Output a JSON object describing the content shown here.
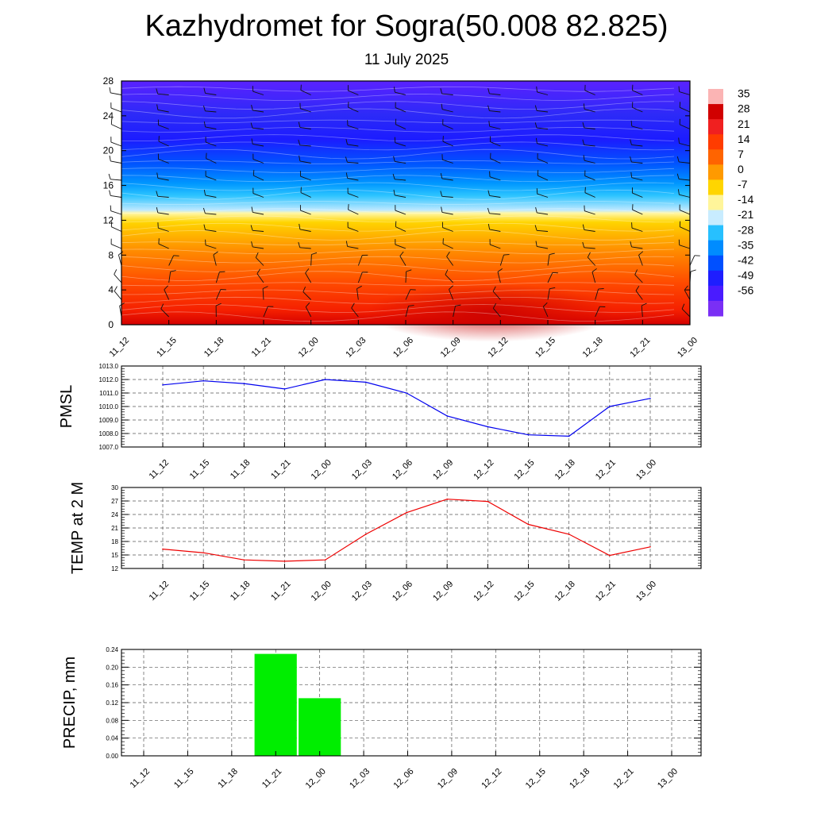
{
  "header": {
    "title": "Kazhydromet for Sogra(50.008 82.825)",
    "date": "11 July 2025"
  },
  "chart_data": [
    {
      "type": "heatmap",
      "name": "temperature-height-section",
      "x_ticks": [
        "11_12",
        "11_15",
        "11_18",
        "11_21",
        "12_00",
        "12_03",
        "12_06",
        "12_09",
        "12_12",
        "12_15",
        "12_18",
        "12_21",
        "13_00"
      ],
      "y_ticks": [
        0,
        4,
        8,
        12,
        16,
        20,
        24,
        28
      ],
      "ylim": [
        0,
        28
      ],
      "colorbar": {
        "labels": [
          "35",
          "28",
          "21",
          "14",
          "7",
          "0",
          "-7",
          "-14",
          "-21",
          "-28",
          "-35",
          "-42",
          "-49",
          "-56"
        ],
        "colors": [
          "#fbb4b4",
          "#d10000",
          "#f02020",
          "#ff3c00",
          "#ff6400",
          "#ff9a00",
          "#ffd500",
          "#fff59a",
          "#c8ecff",
          "#27c0ff",
          "#008cff",
          "#0050ff",
          "#1e1eff",
          "#4a1bff",
          "#7a2ff5"
        ]
      },
      "grid": false
    },
    {
      "type": "line",
      "name": "pmsl",
      "ylabel": "PMSL",
      "categories": [
        "11_12",
        "11_15",
        "11_18",
        "11_21",
        "12_00",
        "12_03",
        "12_06",
        "12_09",
        "12_12",
        "12_15",
        "12_18",
        "12_21",
        "13_00"
      ],
      "values": [
        1011.6,
        1011.9,
        1011.7,
        1011.3,
        1012.0,
        1011.8,
        1011.0,
        1009.3,
        1008.5,
        1007.9,
        1007.8,
        1010.0,
        1010.6
      ],
      "ylim": [
        1007.0,
        1013.0
      ],
      "y_ticks": [
        "1007.0",
        "1008.0",
        "1009.0",
        "1010.0",
        "1011.0",
        "1012.0",
        "1013.0"
      ],
      "color": "#0000ee",
      "grid": true
    },
    {
      "type": "line",
      "name": "temp-2m",
      "ylabel": "TEMP at 2 M",
      "categories": [
        "11_12",
        "11_15",
        "11_18",
        "11_21",
        "12_00",
        "12_03",
        "12_06",
        "12_09",
        "12_12",
        "12_15",
        "12_18",
        "12_21",
        "13_00"
      ],
      "values": [
        16.3,
        15.5,
        13.9,
        13.6,
        13.9,
        19.6,
        24.4,
        27.4,
        26.9,
        21.8,
        19.6,
        14.9,
        16.8
      ],
      "ylim": [
        12,
        30
      ],
      "y_ticks": [
        "12",
        "15",
        "18",
        "21",
        "24",
        "27",
        "30"
      ],
      "color": "#ee0000",
      "grid": true
    },
    {
      "type": "bar",
      "name": "precip",
      "ylabel": "PRECIP, mm",
      "categories": [
        "11_12",
        "11_15",
        "11_18",
        "11_21",
        "12_00",
        "12_03",
        "12_06",
        "12_09",
        "12_12",
        "12_15",
        "12_18",
        "12_21",
        "13_00"
      ],
      "values": [
        0,
        0,
        0,
        0.23,
        0.13,
        0,
        0,
        0,
        0,
        0,
        0,
        0,
        0
      ],
      "ylim": [
        0,
        0.24
      ],
      "y_ticks": [
        "0.00",
        "0.04",
        "0.08",
        "0.12",
        "0.16",
        "0.20",
        "0.24"
      ],
      "color": "#00ee00",
      "grid": true
    }
  ]
}
